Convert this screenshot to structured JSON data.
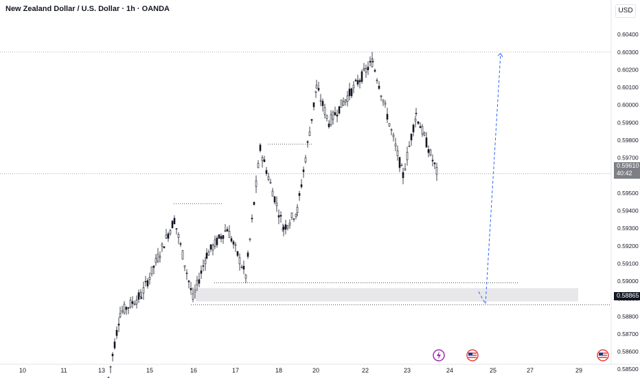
{
  "header": {
    "title": "New Zealand Dollar / U.S. Dollar · 1h · OANDA",
    "currency": "USD"
  },
  "price_axis": {
    "ticks": [
      "0.60400",
      "0.60300",
      "0.60200",
      "0.60100",
      "0.60000",
      "0.59900",
      "0.59800",
      "0.59700",
      "0.59500",
      "0.59400",
      "0.59300",
      "0.59200",
      "0.59100",
      "0.59000",
      "0.58900",
      "0.58800",
      "0.58700",
      "0.58600",
      "0.58500"
    ],
    "current_price": "0.59610",
    "countdown": "40:42",
    "level_price": "0.58865"
  },
  "time_axis": {
    "ticks": [
      "10",
      "11",
      "13",
      "15",
      "16",
      "17",
      "18",
      "20",
      "22",
      "23",
      "24",
      "25",
      "27",
      "29"
    ]
  },
  "colors": {
    "candle": "#131722",
    "zone_fill": "#e8e8ea",
    "projection": "#2962ff",
    "grid_dotted": "#9598a1",
    "event_pink": "#9c27b0",
    "event_flag": "#e53935"
  },
  "events": [
    {
      "icon": "lightning-icon"
    },
    {
      "icon": "us-flag-icon"
    },
    {
      "icon": "us-flag-icon"
    }
  ],
  "chart_data": {
    "type": "candlestick",
    "title": "New Zealand Dollar / U.S. Dollar · 1h · OANDA",
    "xlabel": "",
    "ylabel": "",
    "ylim": [
      0.5845,
      0.6046
    ],
    "x_categories": [
      "10",
      "11",
      "13",
      "15",
      "16",
      "17",
      "18",
      "20",
      "22",
      "23",
      "24",
      "25",
      "27",
      "29"
    ],
    "grid": false,
    "current_price": 0.5961,
    "resistance_level": 0.603,
    "support_level": 0.58865,
    "demand_zone": [
      0.58865,
      0.5896
    ],
    "approx_close_path": [
      {
        "x": "13",
        "y": 0.5845
      },
      {
        "x": "13",
        "y": 0.5882
      },
      {
        "x": "15",
        "y": 0.5892
      },
      {
        "x": "15",
        "y": 0.5935
      },
      {
        "x": "16",
        "y": 0.589
      },
      {
        "x": "16",
        "y": 0.5915
      },
      {
        "x": "17",
        "y": 0.593
      },
      {
        "x": "17",
        "y": 0.5903
      },
      {
        "x": "18",
        "y": 0.5975
      },
      {
        "x": "18",
        "y": 0.593
      },
      {
        "x": "20",
        "y": 0.594
      },
      {
        "x": "20",
        "y": 0.601
      },
      {
        "x": "22",
        "y": 0.599
      },
      {
        "x": "22",
        "y": 0.6025
      },
      {
        "x": "23",
        "y": 0.596
      },
      {
        "x": "23",
        "y": 0.5995
      },
      {
        "x": "23",
        "y": 0.5961
      }
    ]
  }
}
